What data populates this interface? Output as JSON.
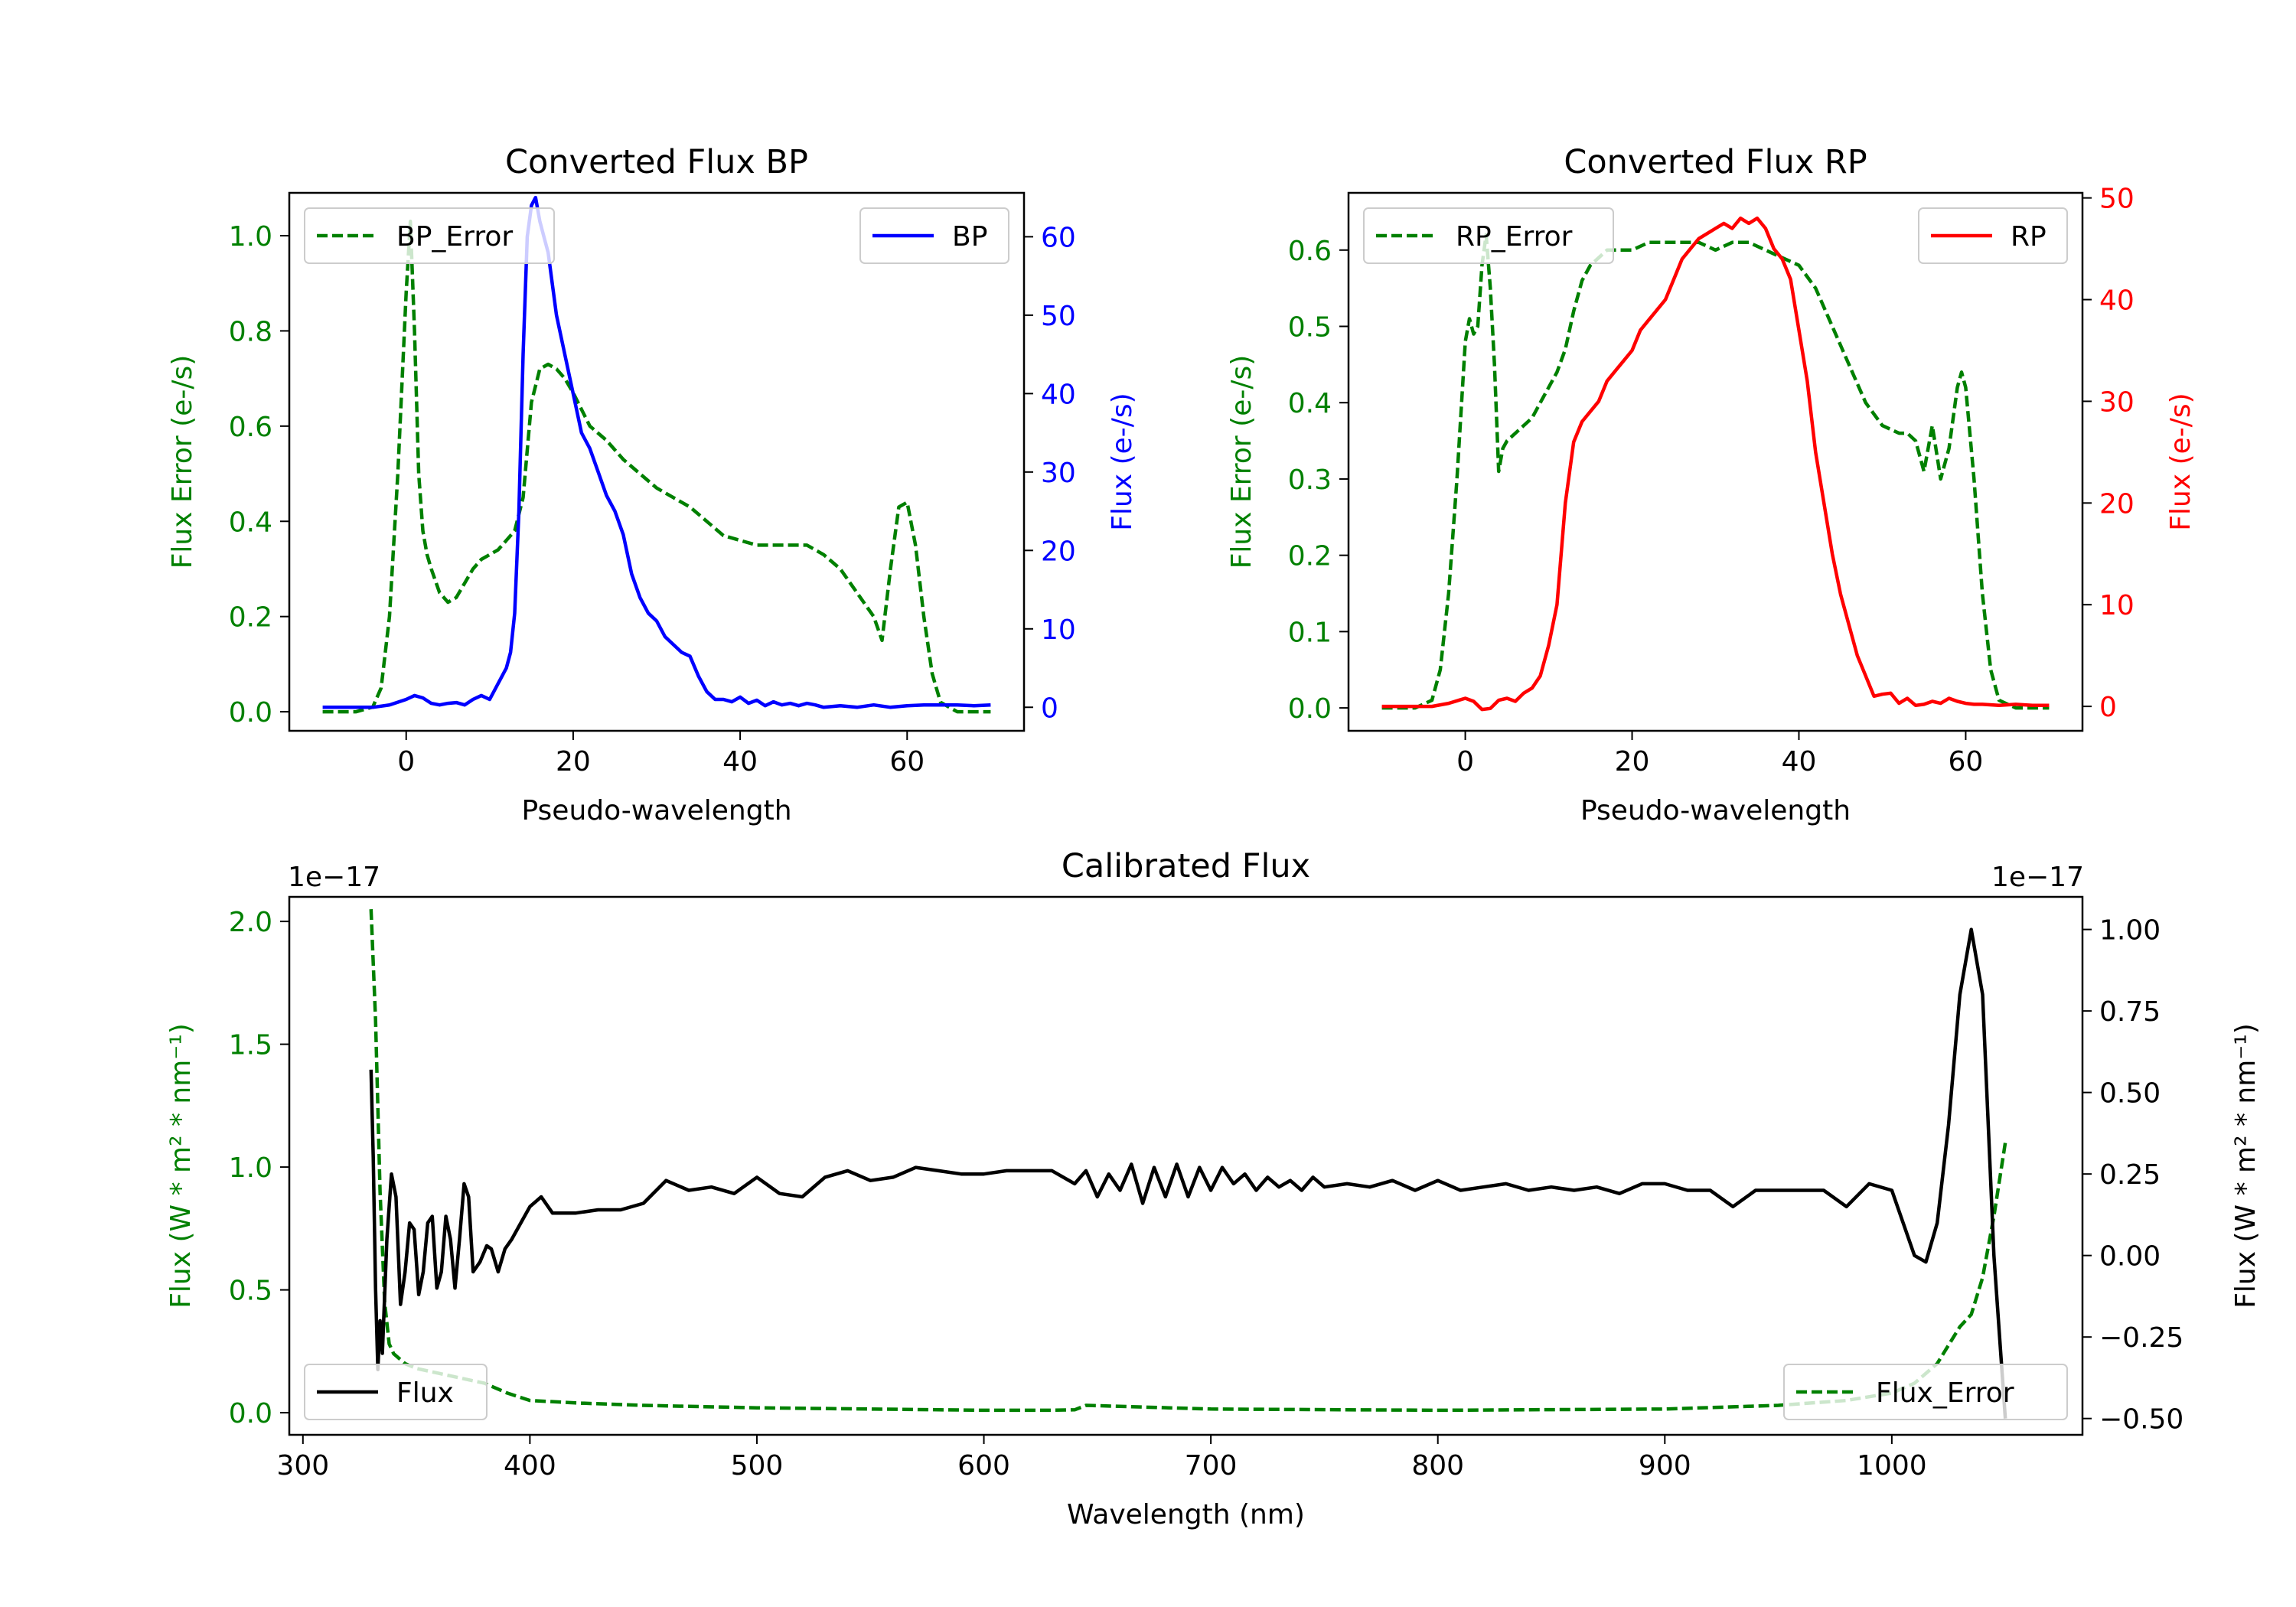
{
  "chart_data": [
    {
      "id": "bp",
      "type": "line",
      "title": "Converted Flux BP",
      "xlabel": "Pseudo-wavelength",
      "xlim": [
        -14,
        74
      ],
      "xticks": [
        0,
        20,
        40,
        60
      ],
      "left_axis": {
        "label": "Flux Error (e-/s)",
        "color": "#008000",
        "ylim": [
          -0.04,
          1.09
        ],
        "ticks": [
          0.0,
          0.2,
          0.4,
          0.6,
          0.8,
          1.0
        ],
        "tick_labels": [
          "0.0",
          "0.2",
          "0.4",
          "0.6",
          "0.8",
          "1.0"
        ]
      },
      "right_axis": {
        "label": "Flux (e-/s)",
        "color": "#0000ff",
        "ylim": [
          -3.0,
          65.6
        ],
        "ticks": [
          0,
          10,
          20,
          30,
          40,
          50,
          60
        ],
        "tick_labels": [
          "0",
          "10",
          "20",
          "30",
          "40",
          "50",
          "60"
        ]
      },
      "series": [
        {
          "name": "BP_Error",
          "axis": "left",
          "color": "#008000",
          "style": "dashed",
          "x": [
            -10,
            -6,
            -4,
            -3,
            -2,
            -1,
            0,
            0.5,
            1,
            1.5,
            2,
            2.5,
            3,
            4,
            5,
            6,
            7,
            8,
            9,
            10,
            11,
            12,
            13,
            14,
            15,
            16,
            17,
            18,
            19,
            20,
            22,
            24,
            26,
            28,
            30,
            32,
            34,
            36,
            38,
            40,
            42,
            44,
            46,
            48,
            50,
            52,
            54,
            56,
            57,
            58,
            59,
            60,
            61,
            62,
            63,
            64,
            66,
            70
          ],
          "values": [
            0,
            0,
            0.01,
            0.05,
            0.2,
            0.5,
            0.88,
            1.03,
            0.8,
            0.5,
            0.38,
            0.33,
            0.3,
            0.25,
            0.23,
            0.24,
            0.27,
            0.3,
            0.32,
            0.33,
            0.34,
            0.36,
            0.38,
            0.45,
            0.65,
            0.72,
            0.73,
            0.72,
            0.7,
            0.67,
            0.6,
            0.57,
            0.53,
            0.5,
            0.47,
            0.45,
            0.43,
            0.4,
            0.37,
            0.36,
            0.35,
            0.35,
            0.35,
            0.35,
            0.33,
            0.3,
            0.25,
            0.2,
            0.15,
            0.3,
            0.43,
            0.44,
            0.35,
            0.2,
            0.08,
            0.02,
            0,
            0
          ]
        },
        {
          "name": "BP",
          "axis": "right",
          "color": "#0000ff",
          "style": "solid",
          "x": [
            -10,
            -6,
            -4,
            -2,
            0,
            1,
            2,
            3,
            4,
            5,
            6,
            7,
            8,
            9,
            10,
            11,
            12,
            12.5,
            13,
            13.5,
            14,
            14.5,
            15,
            15.5,
            16,
            16.5,
            17,
            18,
            19,
            20,
            21,
            22,
            23,
            24,
            25,
            26,
            27,
            28,
            29,
            30,
            31,
            32,
            33,
            34,
            35,
            36,
            37,
            38,
            39,
            40,
            41,
            42,
            43,
            44,
            45,
            46,
            47,
            48,
            49,
            50,
            52,
            54,
            56,
            58,
            60,
            62,
            64,
            66,
            68,
            70
          ],
          "values": [
            0,
            0,
            0,
            0.3,
            1.0,
            1.5,
            1.2,
            0.5,
            0.3,
            0.5,
            0.6,
            0.3,
            1.0,
            1.5,
            1.0,
            3.0,
            5.0,
            7.0,
            12.0,
            25.0,
            45.0,
            60.0,
            64.0,
            65.0,
            62.0,
            60.0,
            58.0,
            50.0,
            45.0,
            40.0,
            35.0,
            33.0,
            30.0,
            27.0,
            25.0,
            22.0,
            17.0,
            14.0,
            12.0,
            11.0,
            9.0,
            8.0,
            7.0,
            6.5,
            4.0,
            2.0,
            1.0,
            1.0,
            0.7,
            1.3,
            0.5,
            0.9,
            0.2,
            0.7,
            0.3,
            0.5,
            0.2,
            0.5,
            0.3,
            0,
            0.2,
            0,
            0.3,
            0,
            0.2,
            0.3,
            0.3,
            0.3,
            0.2,
            0.3
          ]
        }
      ],
      "legend": [
        {
          "label": "BP_Error",
          "position": "upper-left"
        },
        {
          "label": "BP",
          "position": "upper-right"
        }
      ]
    },
    {
      "id": "rp",
      "type": "line",
      "title": "Converted Flux RP",
      "xlabel": "Pseudo-wavelength",
      "xlim": [
        -14,
        74
      ],
      "xticks": [
        0,
        20,
        40,
        60
      ],
      "left_axis": {
        "label": "Flux Error (e-/s)",
        "color": "#008000",
        "ylim": [
          -0.03,
          0.675
        ],
        "ticks": [
          0.0,
          0.1,
          0.2,
          0.3,
          0.4,
          0.5,
          0.6
        ],
        "tick_labels": [
          "0.0",
          "0.1",
          "0.2",
          "0.3",
          "0.4",
          "0.5",
          "0.6"
        ]
      },
      "right_axis": {
        "label": "Flux (e-/s)",
        "color": "#ff0000",
        "ylim": [
          -2.4,
          50.5
        ],
        "ticks": [
          0,
          10,
          20,
          30,
          40,
          50
        ],
        "tick_labels": [
          "0",
          "10",
          "20",
          "30",
          "40",
          "50"
        ]
      },
      "series": [
        {
          "name": "RP_Error",
          "axis": "left",
          "color": "#008000",
          "style": "dashed",
          "x": [
            -10,
            -6,
            -4,
            -3,
            -2,
            -1,
            0,
            0.5,
            1,
            1.5,
            2,
            2.5,
            3,
            3.5,
            4,
            4.5,
            5,
            6,
            7,
            8,
            9,
            10,
            11,
            12,
            13,
            14,
            15,
            16,
            17,
            18,
            20,
            22,
            24,
            26,
            28,
            30,
            32,
            34,
            36,
            38,
            40,
            42,
            44,
            46,
            48,
            50,
            52,
            53,
            54,
            55,
            56,
            57,
            58,
            59,
            59.5,
            60,
            61,
            62,
            63,
            64,
            66,
            70
          ],
          "values": [
            0,
            0,
            0.01,
            0.05,
            0.15,
            0.3,
            0.48,
            0.51,
            0.49,
            0.5,
            0.58,
            0.62,
            0.55,
            0.45,
            0.31,
            0.34,
            0.35,
            0.36,
            0.37,
            0.38,
            0.4,
            0.42,
            0.44,
            0.47,
            0.52,
            0.56,
            0.58,
            0.59,
            0.6,
            0.6,
            0.6,
            0.61,
            0.61,
            0.61,
            0.61,
            0.6,
            0.61,
            0.61,
            0.6,
            0.59,
            0.58,
            0.55,
            0.5,
            0.45,
            0.4,
            0.37,
            0.36,
            0.36,
            0.35,
            0.31,
            0.37,
            0.3,
            0.34,
            0.42,
            0.44,
            0.42,
            0.3,
            0.15,
            0.05,
            0.01,
            0,
            0
          ]
        },
        {
          "name": "RP",
          "axis": "right",
          "color": "#ff0000",
          "style": "solid",
          "x": [
            -10,
            -6,
            -4,
            -2,
            0,
            1,
            2,
            3,
            4,
            5,
            6,
            7,
            8,
            9,
            10,
            11,
            12,
            13,
            14,
            15,
            16,
            17,
            18,
            19,
            20,
            21,
            22,
            23,
            24,
            25,
            26,
            27,
            28,
            29,
            30,
            31,
            32,
            33,
            34,
            35,
            36,
            37,
            38,
            39,
            40,
            41,
            42,
            43,
            44,
            45,
            46,
            47,
            48,
            49,
            50,
            51,
            52,
            53,
            54,
            55,
            56,
            57,
            58,
            59,
            60,
            61,
            62,
            64,
            66,
            68,
            70
          ],
          "values": [
            0,
            0,
            0,
            0.3,
            0.8,
            0.5,
            -0.3,
            -0.2,
            0.6,
            0.8,
            0.5,
            1.3,
            1.8,
            3.0,
            6.0,
            10.0,
            20.0,
            26.0,
            28.0,
            29.0,
            30.0,
            32.0,
            33.0,
            34.0,
            35.0,
            37.0,
            38.0,
            39.0,
            40.0,
            42.0,
            44.0,
            45.0,
            46.0,
            46.5,
            47.0,
            47.5,
            47.0,
            48.0,
            47.5,
            48.0,
            47.0,
            45.0,
            44.0,
            42.0,
            37.0,
            32.0,
            25.0,
            20.0,
            15.0,
            11.0,
            8.0,
            5.0,
            3.0,
            1.0,
            1.2,
            1.3,
            0.3,
            0.8,
            0.1,
            0.2,
            0.5,
            0.3,
            0.8,
            0.5,
            0.3,
            0.2,
            0.2,
            0.1,
            0.2,
            0.1,
            0.1
          ]
        }
      ],
      "legend": [
        {
          "label": "RP_Error",
          "position": "upper-left"
        },
        {
          "label": "RP",
          "position": "upper-right"
        }
      ]
    },
    {
      "id": "cal",
      "type": "line",
      "title": "Calibrated Flux",
      "xlabel": "Wavelength (nm)",
      "xlim": [
        294,
        1084
      ],
      "xticks": [
        300,
        400,
        500,
        600,
        700,
        800,
        900,
        1000
      ],
      "left_axis": {
        "label": "Flux (W * m² * nm⁻¹)",
        "offset_label": "1e−17",
        "color": "#008000",
        "ylim": [
          -0.09,
          2.1
        ],
        "ticks": [
          0.0,
          0.5,
          1.0,
          1.5,
          2.0
        ],
        "tick_labels": [
          "0.0",
          "0.5",
          "1.0",
          "1.5",
          "2.0"
        ]
      },
      "right_axis": {
        "label": "Flux (W * m² * nm⁻¹)",
        "offset_label": "1e−17",
        "color": "#000000",
        "ylim": [
          -0.55,
          1.1
        ],
        "ticks": [
          -0.5,
          -0.25,
          0.0,
          0.25,
          0.5,
          0.75,
          1.0
        ],
        "tick_labels": [
          "−0.50",
          "−0.25",
          "0.00",
          "0.25",
          "0.50",
          "0.75",
          "1.00"
        ]
      },
      "series": [
        {
          "name": "Flux_Error",
          "axis": "left",
          "color": "#008000",
          "style": "dashed",
          "x": [
            330,
            332,
            334,
            336,
            338,
            340,
            345,
            350,
            355,
            360,
            370,
            380,
            390,
            400,
            420,
            450,
            500,
            550,
            600,
            630,
            640,
            645,
            700,
            800,
            900,
            950,
            980,
            1000,
            1010,
            1020,
            1030,
            1035,
            1040,
            1045,
            1050
          ],
          "values": [
            2.05,
            1.6,
            0.9,
            0.45,
            0.28,
            0.24,
            0.2,
            0.18,
            0.17,
            0.16,
            0.14,
            0.12,
            0.08,
            0.05,
            0.04,
            0.03,
            0.02,
            0.015,
            0.01,
            0.01,
            0.012,
            0.03,
            0.015,
            0.01,
            0.015,
            0.03,
            0.05,
            0.08,
            0.12,
            0.2,
            0.35,
            0.4,
            0.55,
            0.8,
            1.1
          ]
        },
        {
          "name": "Flux",
          "axis": "right",
          "color": "#000000",
          "style": "solid",
          "x": [
            330,
            331,
            332,
            333,
            334,
            335,
            337,
            339,
            341,
            343,
            345,
            347,
            349,
            351,
            353,
            355,
            357,
            359,
            361,
            363,
            365,
            367,
            369,
            371,
            373,
            375,
            378,
            381,
            383,
            386,
            389,
            392,
            396,
            400,
            405,
            410,
            415,
            420,
            430,
            440,
            450,
            460,
            470,
            480,
            490,
            500,
            510,
            520,
            530,
            540,
            550,
            560,
            570,
            580,
            590,
            600,
            610,
            620,
            630,
            640,
            645,
            650,
            655,
            660,
            665,
            670,
            675,
            680,
            685,
            690,
            695,
            700,
            705,
            710,
            715,
            720,
            725,
            730,
            735,
            740,
            745,
            750,
            760,
            770,
            780,
            790,
            800,
            810,
            820,
            830,
            840,
            850,
            860,
            870,
            880,
            890,
            900,
            910,
            920,
            930,
            940,
            950,
            960,
            970,
            980,
            990,
            1000,
            1005,
            1010,
            1015,
            1020,
            1025,
            1030,
            1035,
            1040,
            1045,
            1048,
            1050
          ],
          "values": [
            0.57,
            0.3,
            -0.1,
            -0.35,
            -0.2,
            -0.3,
            0.05,
            0.25,
            0.18,
            -0.15,
            -0.05,
            0.1,
            0.08,
            -0.12,
            -0.05,
            0.1,
            0.12,
            -0.1,
            -0.05,
            0.12,
            0.05,
            -0.1,
            0.05,
            0.22,
            0.18,
            -0.05,
            -0.02,
            0.03,
            0.02,
            -0.05,
            0.02,
            0.05,
            0.1,
            0.15,
            0.18,
            0.13,
            0.13,
            0.13,
            0.14,
            0.14,
            0.16,
            0.23,
            0.2,
            0.21,
            0.19,
            0.24,
            0.19,
            0.18,
            0.24,
            0.26,
            0.23,
            0.24,
            0.27,
            0.26,
            0.25,
            0.25,
            0.26,
            0.26,
            0.26,
            0.22,
            0.26,
            0.18,
            0.25,
            0.2,
            0.28,
            0.16,
            0.27,
            0.18,
            0.28,
            0.18,
            0.27,
            0.2,
            0.27,
            0.22,
            0.25,
            0.2,
            0.24,
            0.21,
            0.23,
            0.2,
            0.24,
            0.21,
            0.22,
            0.21,
            0.23,
            0.2,
            0.23,
            0.2,
            0.21,
            0.22,
            0.2,
            0.21,
            0.2,
            0.21,
            0.19,
            0.22,
            0.22,
            0.2,
            0.2,
            0.15,
            0.2,
            0.2,
            0.2,
            0.2,
            0.15,
            0.22,
            0.2,
            0.1,
            0.0,
            -0.02,
            0.1,
            0.4,
            0.8,
            1.0,
            0.8,
            0.0,
            -0.3,
            -0.5
          ]
        }
      ],
      "legend": [
        {
          "label": "Flux",
          "position": "lower-left"
        },
        {
          "label": "Flux_Error",
          "position": "lower-right"
        }
      ]
    }
  ]
}
